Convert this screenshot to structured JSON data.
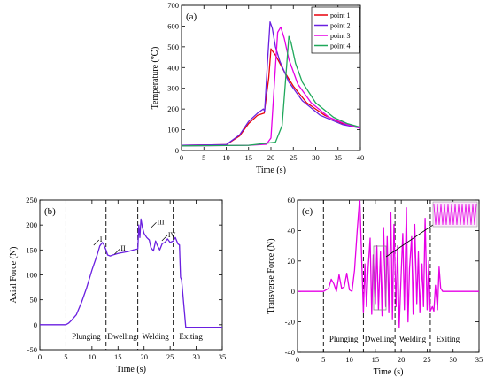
{
  "chart_data": [
    {
      "type": "line",
      "panel_label": "(a)",
      "xlabel": "Time (s)",
      "ylabel": "Temperature (℃)",
      "xlim": [
        0,
        40
      ],
      "ylim": [
        0,
        700
      ],
      "xticks": [
        0,
        5,
        10,
        15,
        20,
        25,
        30,
        35,
        40
      ],
      "yticks": [
        0,
        100,
        200,
        300,
        400,
        500,
        600,
        700
      ],
      "legend_position": "top-right",
      "series": [
        {
          "name": "point 1",
          "color": "#e8000b",
          "x": [
            0,
            10,
            13,
            15,
            17,
            18.5,
            19.5,
            20,
            21,
            22,
            23,
            25,
            28,
            32,
            36,
            40
          ],
          "y": [
            25,
            28,
            70,
            130,
            170,
            180,
            350,
            490,
            460,
            420,
            380,
            310,
            230,
            170,
            130,
            110
          ]
        },
        {
          "name": "point 2",
          "color": "#6a1fe0",
          "x": [
            0,
            10,
            13,
            15,
            17,
            18.3,
            18.6,
            19.2,
            19.8,
            20.3,
            21,
            22,
            24,
            27,
            31,
            36,
            40
          ],
          "y": [
            25,
            28,
            75,
            140,
            180,
            200,
            190,
            420,
            620,
            590,
            500,
            430,
            330,
            240,
            170,
            125,
            108
          ]
        },
        {
          "name": "point 3",
          "color": "#e600e6",
          "x": [
            0,
            15,
            19,
            20,
            20.8,
            21.5,
            22.2,
            23,
            24,
            26,
            29,
            33,
            37,
            40
          ],
          "y": [
            22,
            25,
            30,
            60,
            330,
            570,
            595,
            540,
            440,
            320,
            230,
            160,
            125,
            108
          ]
        },
        {
          "name": "point 4",
          "color": "#1fa85a",
          "x": [
            0,
            15,
            19,
            21,
            22.5,
            23.3,
            24,
            24.5,
            25.5,
            27,
            30,
            34,
            37,
            40
          ],
          "y": [
            22,
            25,
            35,
            40,
            120,
            350,
            550,
            520,
            420,
            330,
            230,
            160,
            130,
            112
          ]
        }
      ]
    },
    {
      "type": "line",
      "panel_label": "(b)",
      "xlabel": "Time (s)",
      "ylabel": "Axial Force (N)",
      "xlim": [
        0,
        35
      ],
      "ylim": [
        -50,
        250
      ],
      "xticks": [
        0,
        5,
        10,
        15,
        20,
        25,
        30,
        35
      ],
      "yticks": [
        -50,
        0,
        50,
        100,
        150,
        200,
        250
      ],
      "phase_lines_x": [
        5,
        12.7,
        18.8,
        25.6
      ],
      "phases": [
        {
          "label": "Plunging",
          "x": 8.9
        },
        {
          "label": "Dwelling",
          "x": 15.8
        },
        {
          "label": "Welding",
          "x": 22.2
        },
        {
          "label": "Exiting",
          "x": 29
        }
      ],
      "annotations": [
        {
          "text": "I",
          "x": 10.5,
          "y": 163
        },
        {
          "text": "II",
          "x": 14.5,
          "y": 145
        },
        {
          "text": "III",
          "x": 21.5,
          "y": 198
        },
        {
          "text": "IV",
          "x": 23.6,
          "y": 172
        }
      ],
      "series": [
        {
          "color": "#6a1fe0",
          "x": [
            0,
            5,
            5.5,
            6,
            7,
            8,
            9,
            10,
            11,
            11.5,
            12,
            12.3,
            12.7,
            13,
            13.5,
            14,
            15,
            16,
            17,
            18,
            18.8,
            19,
            19.2,
            19.4,
            19.7,
            20,
            20.5,
            21,
            21.3,
            21.8,
            22.2,
            22.6,
            23,
            23.5,
            24,
            24.5,
            25,
            25.6,
            26,
            26.5,
            26.8,
            27,
            27.2,
            28,
            30,
            32,
            35
          ],
          "y": [
            0,
            0,
            3,
            8,
            20,
            45,
            75,
            110,
            140,
            158,
            165,
            160,
            150,
            140,
            138,
            140,
            143,
            145,
            147,
            150,
            152,
            200,
            175,
            212,
            195,
            183,
            175,
            170,
            155,
            148,
            168,
            158,
            150,
            163,
            165,
            172,
            165,
            168,
            175,
            162,
            160,
            95,
            90,
            -5,
            -5,
            -5,
            -5
          ]
        }
      ]
    },
    {
      "type": "line",
      "panel_label": "(c)",
      "xlabel": "Time (s)",
      "ylabel": "Transverse Force (N)",
      "xlim": [
        0,
        35
      ],
      "ylim": [
        -40,
        60
      ],
      "xticks": [
        0,
        5,
        10,
        15,
        20,
        25,
        30,
        35
      ],
      "yticks": [
        -40,
        -20,
        0,
        20,
        40,
        60
      ],
      "phase_lines_x": [
        5,
        12.7,
        18.8,
        25.6
      ],
      "phases": [
        {
          "label": "Plunging",
          "x": 8.9
        },
        {
          "label": "Dwelling",
          "x": 15.8
        },
        {
          "label": "Welding",
          "x": 22.2
        },
        {
          "label": "Exiting",
          "x": 29
        }
      ],
      "series": [
        {
          "color": "#e600e6",
          "x": [
            0,
            5,
            6,
            6.5,
            7,
            7.5,
            8,
            8.5,
            9,
            9.5,
            10,
            10.5,
            11,
            11.5,
            12,
            12.3,
            12.7,
            13,
            13.3,
            13.6,
            14,
            14.3,
            14.6,
            15,
            15.3,
            15.6,
            16,
            16.3,
            16.6,
            17,
            17.3,
            17.6,
            18,
            18.3,
            18.6,
            19,
            19.3,
            19.6,
            20,
            20.3,
            20.6,
            21,
            21.3,
            21.6,
            22,
            22.3,
            22.6,
            23,
            23.3,
            23.6,
            24,
            24.3,
            24.6,
            25,
            25.3,
            25.6,
            26,
            26.3,
            26.6,
            27,
            27.3,
            27.6,
            28,
            28.5,
            30,
            32,
            35
          ],
          "y": [
            0,
            0,
            2,
            8,
            5,
            0,
            11,
            2,
            3,
            12,
            1,
            0,
            14,
            40,
            62,
            30,
            -14,
            18,
            -10,
            15,
            35,
            -15,
            24,
            -8,
            30,
            -12,
            26,
            -16,
            42,
            -10,
            36,
            -14,
            52,
            -18,
            44,
            -10,
            30,
            -24,
            12,
            38,
            -12,
            55,
            -20,
            15,
            36,
            -15,
            44,
            -8,
            26,
            -14,
            18,
            -10,
            48,
            -12,
            20,
            -13,
            -10,
            -13,
            4,
            -12,
            16,
            2,
            0,
            0,
            0,
            0,
            0
          ]
        }
      ]
    }
  ]
}
